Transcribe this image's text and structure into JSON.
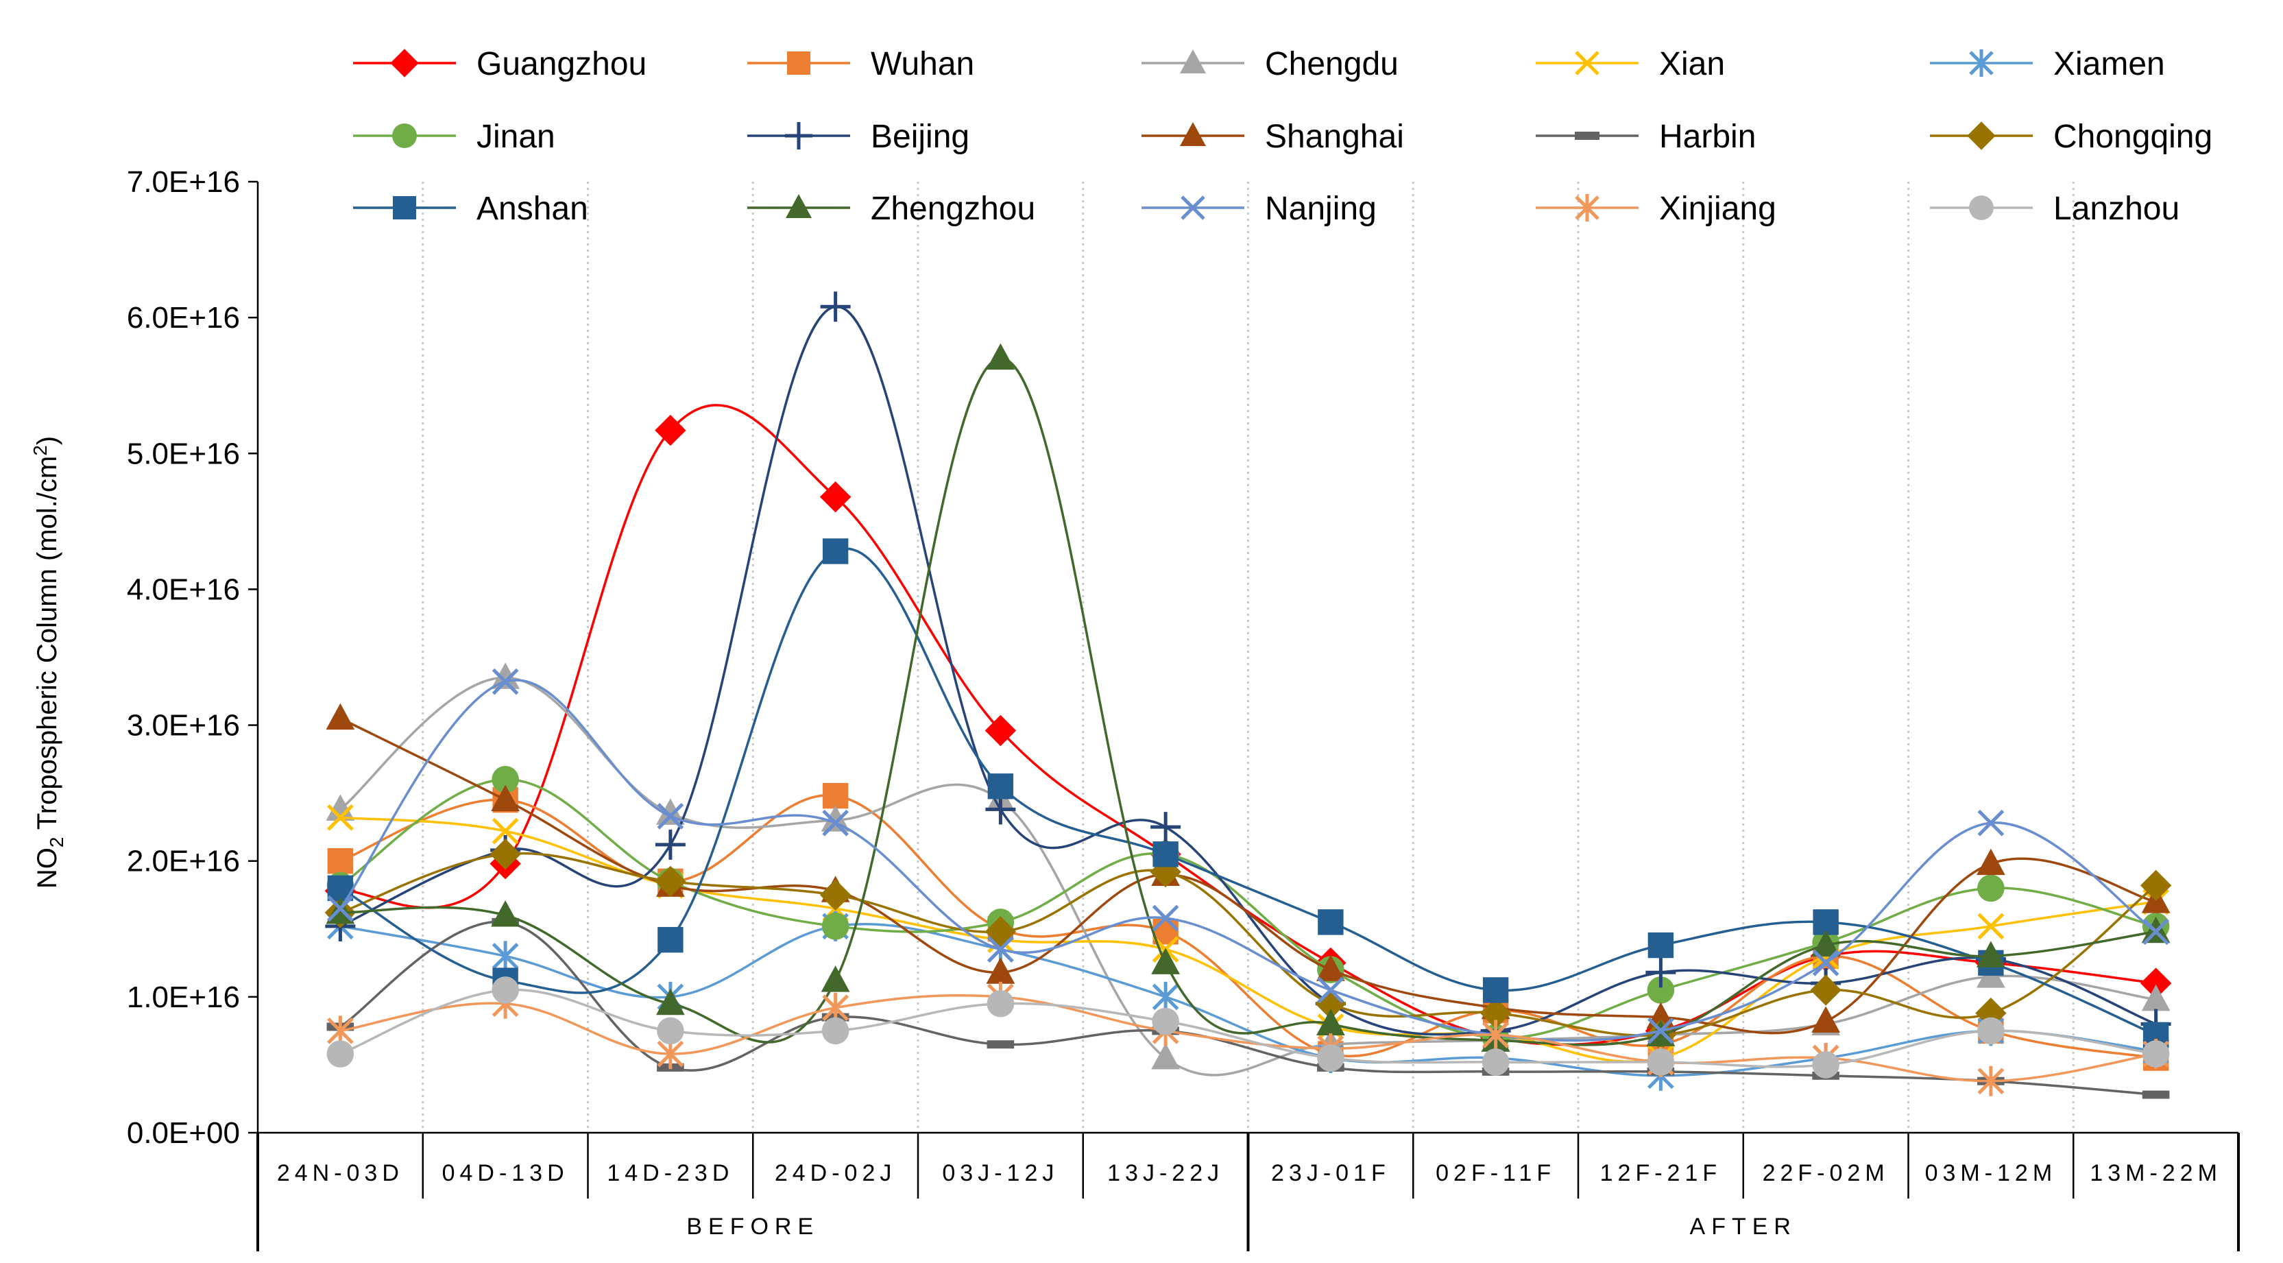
{
  "chart_data": {
    "type": "line",
    "ylabel_main": "NO",
    "ylabel_sub": "2",
    "ylabel_rest": " Tropospheric Column (mol./cm",
    "ylabel_sup": "2",
    "ylabel_end": ")",
    "ylim": [
      0,
      7e+16
    ],
    "yticks": [
      "0.0E+00",
      "1.0E+16",
      "2.0E+16",
      "3.0E+16",
      "4.0E+16",
      "5.0E+16",
      "6.0E+16",
      "7.0E+16"
    ],
    "categories": [
      "24N-03D",
      "04D-13D",
      "14D-23D",
      "24D-02J",
      "03J-12J",
      "13J-22J",
      "23J-01F",
      "02F-11F",
      "12F-21F",
      "22F-02M",
      "03M-12M",
      "13M-22M"
    ],
    "groups": [
      {
        "label": "BEFORE",
        "start": 0,
        "end": 5
      },
      {
        "label": "AFTER",
        "start": 6,
        "end": 11
      }
    ],
    "series": [
      {
        "name": "Guangzhou",
        "color": "#FF0000",
        "marker": "diamond",
        "values": [
          1.78,
          1.98,
          5.17,
          4.68,
          2.96,
          2.05,
          1.25,
          0.7,
          0.75,
          1.3,
          1.25,
          1.1
        ]
      },
      {
        "name": "Wuhan",
        "color": "#ED7D31",
        "marker": "square",
        "values": [
          2.0,
          2.45,
          1.85,
          2.48,
          1.5,
          1.48,
          0.58,
          0.9,
          0.65,
          1.3,
          0.75,
          0.55
        ]
      },
      {
        "name": "Chengdu",
        "color": "#A5A5A5",
        "marker": "triangle",
        "values": [
          2.38,
          3.35,
          2.35,
          2.3,
          2.45,
          0.55,
          0.65,
          0.68,
          0.72,
          0.8,
          1.15,
          0.98
        ]
      },
      {
        "name": "Xian",
        "color": "#FFC000",
        "marker": "x",
        "values": [
          2.32,
          2.22,
          1.82,
          1.65,
          1.42,
          1.35,
          0.78,
          0.72,
          0.55,
          1.3,
          1.52,
          1.7
        ]
      },
      {
        "name": "Xiamen",
        "color": "#5B9BD5",
        "marker": "asterisk",
        "values": [
          1.52,
          1.3,
          1.0,
          1.52,
          1.35,
          1.0,
          0.55,
          0.55,
          0.42,
          0.55,
          0.75,
          0.6
        ]
      },
      {
        "name": "Jinan",
        "color": "#70AD47",
        "marker": "circle",
        "values": [
          1.82,
          2.6,
          1.85,
          1.52,
          1.55,
          2.05,
          1.2,
          0.7,
          1.05,
          1.4,
          1.8,
          1.52
        ]
      },
      {
        "name": "Beijing",
        "color": "#264478",
        "marker": "plus",
        "values": [
          1.52,
          2.08,
          2.12,
          6.08,
          2.38,
          2.25,
          0.95,
          0.75,
          1.18,
          1.1,
          1.28,
          0.8
        ]
      },
      {
        "name": "Shanghai",
        "color": "#9E480E",
        "marker": "triangle",
        "values": [
          3.05,
          2.45,
          1.82,
          1.78,
          1.18,
          1.9,
          1.2,
          0.92,
          0.85,
          0.82,
          1.98,
          1.7
        ]
      },
      {
        "name": "Harbin",
        "color": "#636363",
        "marker": "dash",
        "values": [
          0.78,
          1.55,
          0.48,
          0.85,
          0.65,
          0.75,
          0.48,
          0.45,
          0.45,
          0.42,
          0.38,
          0.28
        ]
      },
      {
        "name": "Chongqing",
        "color": "#997300",
        "marker": "diamond",
        "values": [
          1.62,
          2.05,
          1.85,
          1.75,
          1.48,
          1.92,
          0.95,
          0.88,
          0.72,
          1.05,
          0.88,
          1.82
        ]
      },
      {
        "name": "Anshan",
        "color": "#255E91",
        "marker": "square",
        "values": [
          1.8,
          1.12,
          1.42,
          4.28,
          2.55,
          2.05,
          1.55,
          1.05,
          1.38,
          1.55,
          1.25,
          0.72
        ]
      },
      {
        "name": "Zhengzhou",
        "color": "#43682B",
        "marker": "triangle",
        "values": [
          1.62,
          1.6,
          0.95,
          1.12,
          5.7,
          1.25,
          0.8,
          0.68,
          0.72,
          1.38,
          1.3,
          1.48
        ]
      },
      {
        "name": "Nanjing",
        "color": "#698ED0",
        "marker": "x",
        "values": [
          1.65,
          3.32,
          2.33,
          2.28,
          1.35,
          1.58,
          1.05,
          0.72,
          0.75,
          1.25,
          2.28,
          1.48
        ]
      },
      {
        "name": "Xinjiang",
        "color": "#F1975A",
        "marker": "asterisk",
        "values": [
          0.75,
          0.95,
          0.58,
          0.92,
          1.0,
          0.75,
          0.62,
          0.72,
          0.52,
          0.55,
          0.38,
          0.58
        ]
      },
      {
        "name": "Lanzhou",
        "color": "#B7B7B7",
        "marker": "circle",
        "values": [
          0.58,
          1.05,
          0.75,
          0.75,
          0.95,
          0.82,
          0.55,
          0.52,
          0.52,
          0.5,
          0.75,
          0.58
        ]
      }
    ],
    "value_unit_multiplier": 1e+16,
    "legend": "top, 5 columns"
  }
}
